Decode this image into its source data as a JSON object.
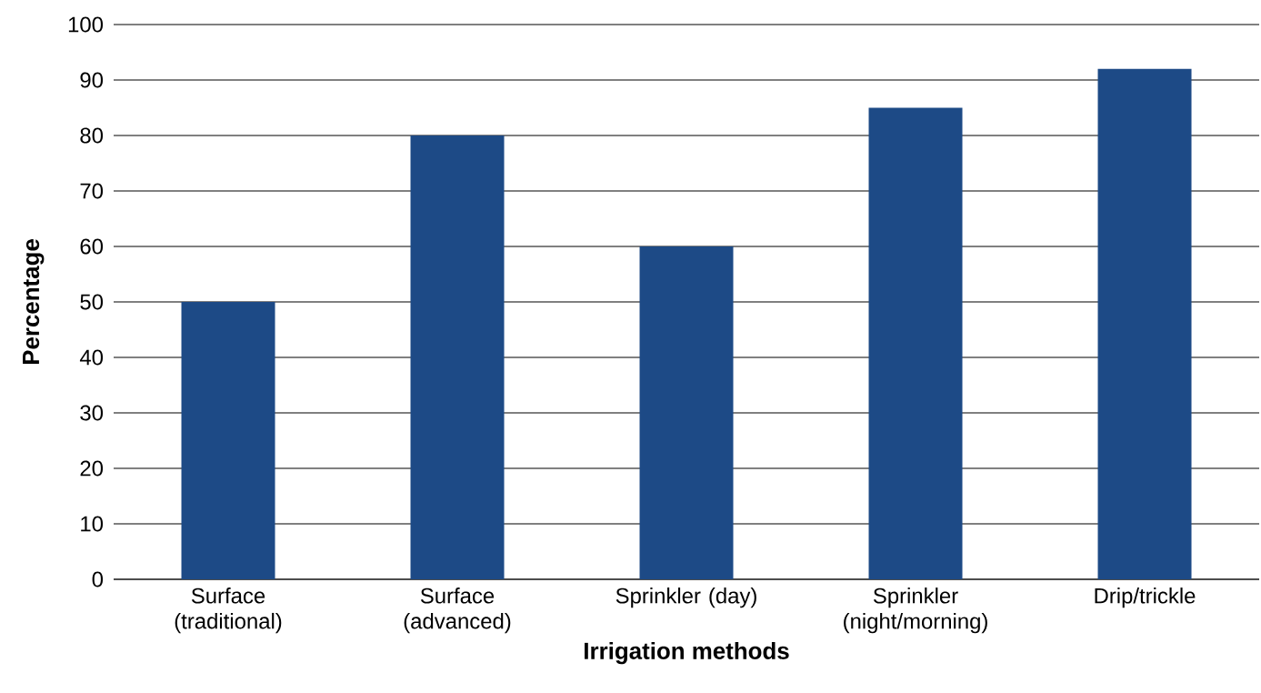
{
  "chart_data": {
    "type": "bar",
    "xlabel": "Irrigation methods",
    "ylabel": "Percentage",
    "categories": [
      "Surface (traditional)",
      "Surface (advanced)",
      "Sprinkler (day)",
      "Sprinkler (night/morning)",
      "Drip/trickle"
    ],
    "values": [
      50,
      80,
      60,
      85,
      92
    ],
    "color": "#1d4a86",
    "ylim": [
      0,
      100
    ],
    "yticks": [
      0,
      10,
      20,
      30,
      40,
      50,
      60,
      70,
      80,
      90,
      100
    ],
    "grid": "y"
  }
}
